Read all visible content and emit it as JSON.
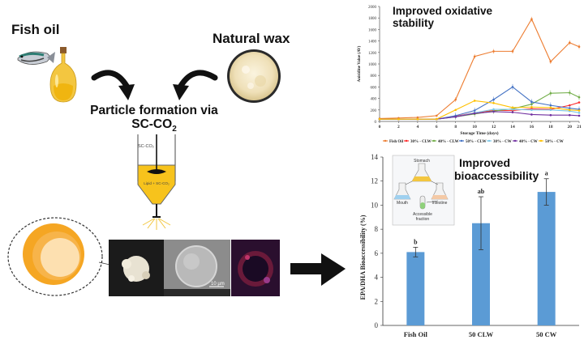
{
  "diagram": {
    "fish_oil_label": "Fish oil",
    "natural_wax_label": "Natural wax",
    "process_line1": "Particle formation via",
    "process_line2_prefix": "SC-CO",
    "process_line2_sub": "2",
    "vessel_top": "SC-CO₂",
    "vessel_inner": "Lipid + SC-CO₂",
    "scale_bar": "10 µm",
    "colors": {
      "vessel_fill": "#f7c31c",
      "arrow": "#111111",
      "bar": "#5b9bd5"
    }
  },
  "chart_data": [
    {
      "type": "line",
      "title": "Improved oxidative stability",
      "xlabel": "Storage Time (days)",
      "ylabel": "Anisidine Value (AV)",
      "x": [
        0,
        2,
        4,
        6,
        8,
        10,
        12,
        14,
        16,
        18,
        20,
        21
      ],
      "ylim": [
        0,
        2000
      ],
      "yticks": [
        0,
        200,
        400,
        600,
        800,
        1000,
        1200,
        1400,
        1600,
        1800,
        2000
      ],
      "series": [
        {
          "name": "Fish Oil",
          "color": "#ed7d31",
          "values": [
            50,
            60,
            70,
            100,
            380,
            1130,
            1220,
            1220,
            1780,
            1040,
            1370,
            1300
          ]
        },
        {
          "name": "30% - CLW",
          "color": "#ff2a2a",
          "values": [
            40,
            40,
            40,
            40,
            90,
            150,
            190,
            190,
            220,
            210,
            280,
            330
          ]
        },
        {
          "name": "40% - CLW",
          "color": "#70ad47",
          "values": [
            40,
            40,
            40,
            40,
            80,
            130,
            180,
            220,
            300,
            490,
            500,
            420
          ]
        },
        {
          "name": "50% - CLW",
          "color": "#4472c4",
          "values": [
            40,
            40,
            40,
            40,
            100,
            190,
            380,
            600,
            340,
            280,
            230,
            210
          ]
        },
        {
          "name": "30% - CW",
          "color": "#7cc7e8",
          "values": [
            40,
            40,
            40,
            40,
            80,
            150,
            210,
            210,
            200,
            200,
            180,
            150
          ]
        },
        {
          "name": "40% - CW",
          "color": "#7030a0",
          "values": [
            40,
            40,
            40,
            40,
            80,
            140,
            170,
            160,
            120,
            110,
            110,
            100
          ]
        },
        {
          "name": "50% - CW",
          "color": "#ffc000",
          "values": [
            40,
            40,
            40,
            40,
            200,
            360,
            320,
            240,
            250,
            240,
            200,
            190
          ]
        }
      ],
      "legend_position": "bottom",
      "grid": false
    },
    {
      "type": "bar",
      "title": "Improved bioaccessibility",
      "xlabel": "",
      "ylabel": "EPA/DHA Bioaccessibility (%)",
      "categories": [
        "Fish Oil",
        "50 CLW",
        "50 CW"
      ],
      "values": [
        6.1,
        8.5,
        11.1
      ],
      "errors": [
        0.4,
        2.2,
        1.1
      ],
      "significance": [
        "b",
        "ab",
        "a"
      ],
      "ylim": [
        0,
        14
      ],
      "yticks": [
        0,
        2,
        4,
        6,
        8,
        10,
        12,
        14
      ],
      "inset_labels": {
        "stomach": "Stomach",
        "mouth": "Mouth",
        "intestine": "Intestine",
        "fraction": "Accessible fraction"
      },
      "grid": false
    }
  ]
}
